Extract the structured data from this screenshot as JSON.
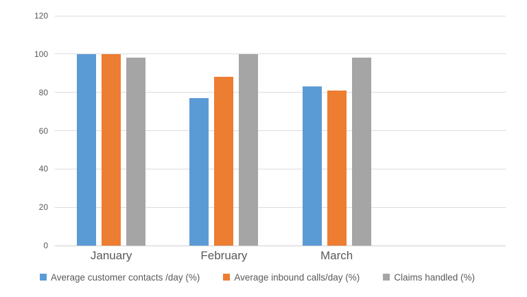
{
  "colors": {
    "background": "#ffffff",
    "axis_text": "#595959",
    "gridline": "#dcdcdc",
    "axis_line": "#cfcfcf",
    "series_blue": "#5B9BD5",
    "series_orange": "#ED7D31",
    "series_gray": "#A5A5A5"
  },
  "chart_data": {
    "type": "bar",
    "title": "",
    "xlabel": "",
    "ylabel": "",
    "categories": [
      "January",
      "February",
      "March"
    ],
    "series": [
      {
        "name": "Average customer contacts /day (%)",
        "color": "#5B9BD5",
        "values": [
          100,
          77,
          83
        ]
      },
      {
        "name": "Average inbound calls/day (%)",
        "color": "#ED7D31",
        "values": [
          100,
          88,
          81
        ]
      },
      {
        "name": "Claims handled (%)",
        "color": "#A5A5A5",
        "values": [
          98,
          100,
          98
        ]
      }
    ],
    "ylim": [
      0,
      120
    ],
    "yticks": [
      0,
      20,
      40,
      60,
      80,
      100,
      120
    ],
    "grid": true,
    "legend_position": "bottom",
    "category_slots": 4
  }
}
